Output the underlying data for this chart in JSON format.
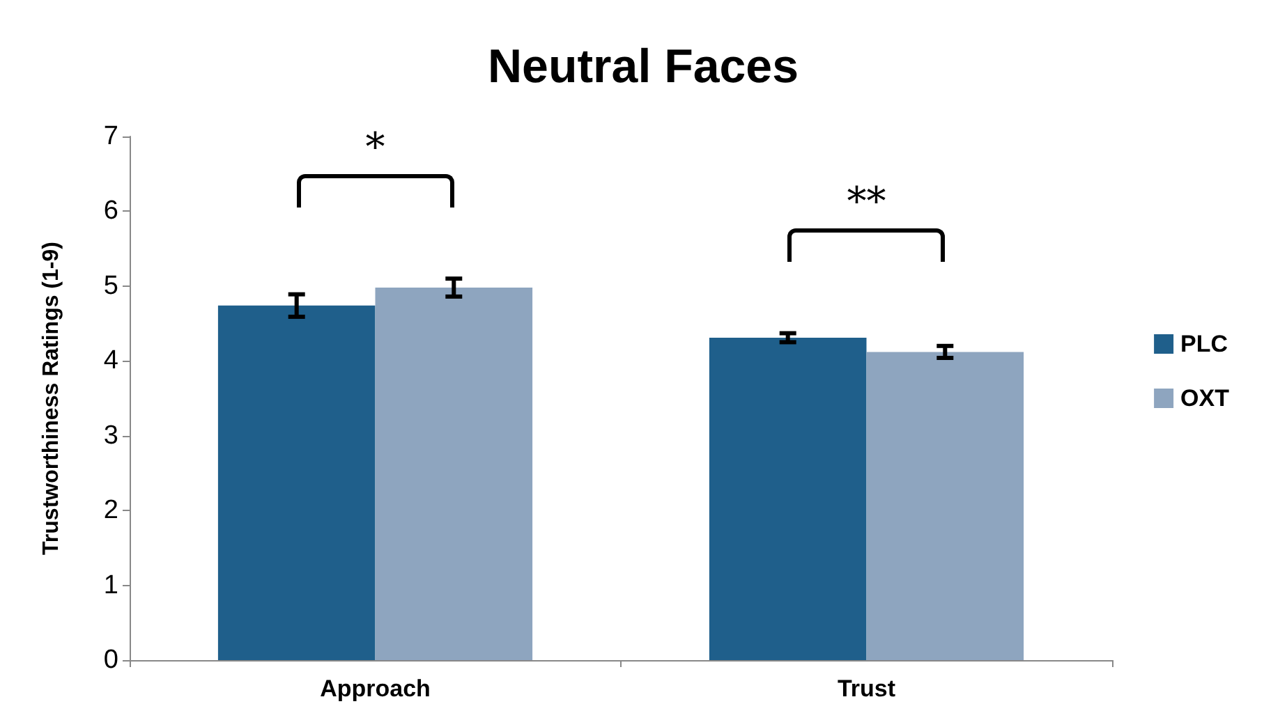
{
  "chart_data": {
    "type": "bar",
    "title": "Neutral Faces",
    "ylabel": "Trustworthiness Ratings (1-9)",
    "categories": [
      "Approach",
      "Trust"
    ],
    "series": [
      {
        "name": "PLC",
        "color": "#1f5f8b",
        "values": [
          4.74,
          4.31
        ],
        "errors": [
          0.15,
          0.06
        ]
      },
      {
        "name": "OXT",
        "color": "#8ea5bf",
        "values": [
          4.98,
          4.12
        ],
        "errors": [
          0.12,
          0.08
        ]
      }
    ],
    "ylim": [
      0,
      7
    ],
    "yticks": [
      0,
      1,
      2,
      3,
      4,
      5,
      6,
      7
    ],
    "grid": false,
    "legend": "right",
    "annotations": [
      "*",
      "**"
    ]
  }
}
